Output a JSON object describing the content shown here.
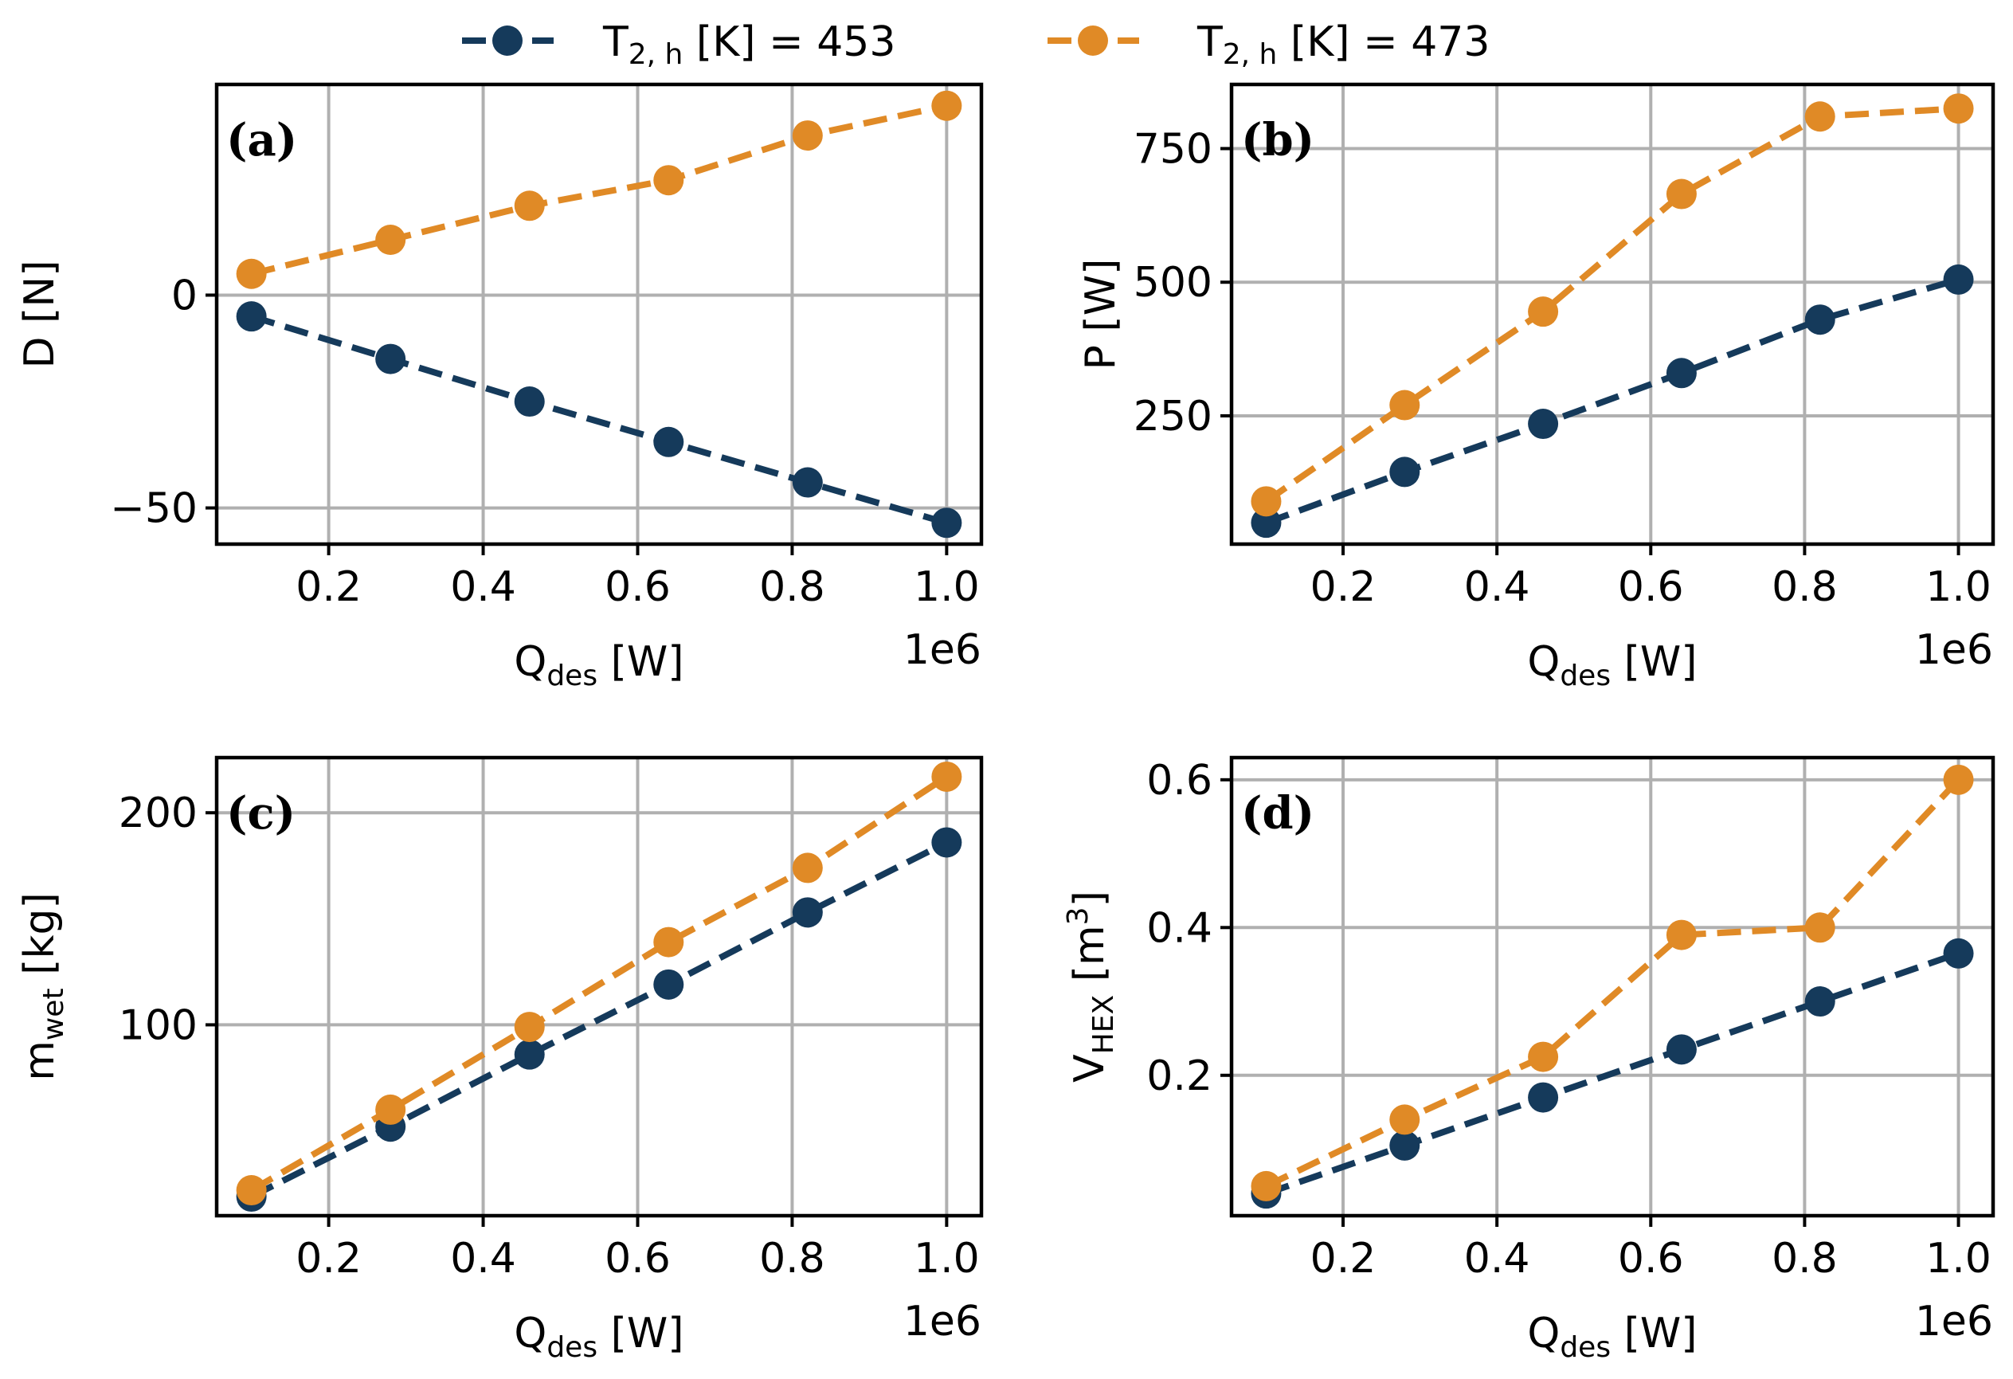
{
  "figure": {
    "multiplier_label": "1e6"
  },
  "legend": {
    "entries": [
      {
        "base": "T",
        "sub": "2, h",
        "tail": " [K] = 453",
        "color": "#153a5b"
      },
      {
        "base": "T",
        "sub": "2, h",
        "tail": " [K] = 473",
        "color": "#e08a26"
      }
    ]
  },
  "chart_data": [
    {
      "type": "line",
      "panel_label": "(a)",
      "xlabel": {
        "base": "Q",
        "sub": "des",
        "tail": " [W]"
      },
      "ylabel": {
        "base": "D",
        "sub": "",
        "tail": " [N]",
        "sup": ""
      },
      "x": [
        0.1,
        0.28,
        0.46,
        0.64,
        0.82,
        1.0
      ],
      "xticks": [
        0.2,
        0.4,
        0.6,
        0.8,
        1.0
      ],
      "xtick_labels": [
        "0.2",
        "0.4",
        "0.6",
        "0.8",
        "1.0"
      ],
      "xlim": [
        0.055,
        1.045
      ],
      "ylim": [
        -58.5,
        49.5
      ],
      "yticks": [
        -50,
        0
      ],
      "ytick_labels": [
        "−50",
        "0"
      ],
      "series": [
        {
          "name": "T2,h [K] = 453",
          "values": [
            -5,
            -15,
            -25,
            -34.5,
            -44,
            -53.5
          ]
        },
        {
          "name": "T2,h [K] = 473",
          "values": [
            5,
            13,
            21,
            27,
            37.5,
            44.5
          ]
        }
      ]
    },
    {
      "type": "line",
      "panel_label": "(b)",
      "xlabel": {
        "base": "Q",
        "sub": "des",
        "tail": " [W]"
      },
      "ylabel": {
        "base": "P",
        "sub": "",
        "tail": " [W]",
        "sup": ""
      },
      "x": [
        0.1,
        0.28,
        0.46,
        0.64,
        0.82,
        1.0
      ],
      "xticks": [
        0.2,
        0.4,
        0.6,
        0.8,
        1.0
      ],
      "xtick_labels": [
        "0.2",
        "0.4",
        "0.6",
        "0.8",
        "1.0"
      ],
      "xlim": [
        0.055,
        1.045
      ],
      "ylim": [
        10,
        870
      ],
      "yticks": [
        250,
        500,
        750
      ],
      "ytick_labels": [
        "250",
        "500",
        "750"
      ],
      "series": [
        {
          "name": "T2,h [K] = 453",
          "values": [
            50,
            145,
            235,
            330,
            430,
            505
          ]
        },
        {
          "name": "T2,h [K] = 473",
          "values": [
            90,
            270,
            445,
            665,
            810,
            825
          ]
        }
      ]
    },
    {
      "type": "line",
      "panel_label": "(c)",
      "xlabel": {
        "base": "Q",
        "sub": "des",
        "tail": " [W]"
      },
      "ylabel": {
        "base": "m",
        "sub": "wet",
        "tail": " [kg]",
        "sup": ""
      },
      "x": [
        0.1,
        0.28,
        0.46,
        0.64,
        0.82,
        1.0
      ],
      "xticks": [
        0.2,
        0.4,
        0.6,
        0.8,
        1.0
      ],
      "xtick_labels": [
        "0.2",
        "0.4",
        "0.6",
        "0.8",
        "1.0"
      ],
      "xlim": [
        0.055,
        1.045
      ],
      "ylim": [
        10,
        226
      ],
      "yticks": [
        100,
        200
      ],
      "ytick_labels": [
        "100",
        "200"
      ],
      "series": [
        {
          "name": "T2,h [K] = 453",
          "values": [
            19,
            52,
            86,
            119,
            153,
            186
          ]
        },
        {
          "name": "T2,h [K] = 473",
          "values": [
            22,
            60,
            99,
            139,
            174,
            217
          ]
        }
      ]
    },
    {
      "type": "line",
      "panel_label": "(d)",
      "xlabel": {
        "base": "Q",
        "sub": "des",
        "tail": " [W]"
      },
      "ylabel": {
        "base": "V",
        "sub": "HEX",
        "tail": " [m",
        "sup": "3",
        "tail2": "]"
      },
      "x": [
        0.1,
        0.28,
        0.46,
        0.64,
        0.82,
        1.0
      ],
      "xticks": [
        0.2,
        0.4,
        0.6,
        0.8,
        1.0
      ],
      "xtick_labels": [
        "0.2",
        "0.4",
        "0.6",
        "0.8",
        "1.0"
      ],
      "xlim": [
        0.055,
        1.045
      ],
      "ylim": [
        0.01,
        0.63
      ],
      "yticks": [
        0.2,
        0.4,
        0.6
      ],
      "ytick_labels": [
        "0.2",
        "0.4",
        "0.6"
      ],
      "series": [
        {
          "name": "T2,h [K] = 453",
          "values": [
            0.04,
            0.105,
            0.17,
            0.235,
            0.3,
            0.365
          ]
        },
        {
          "name": "T2,h [K] = 473",
          "values": [
            0.05,
            0.14,
            0.225,
            0.39,
            0.4,
            0.6
          ]
        }
      ]
    }
  ]
}
